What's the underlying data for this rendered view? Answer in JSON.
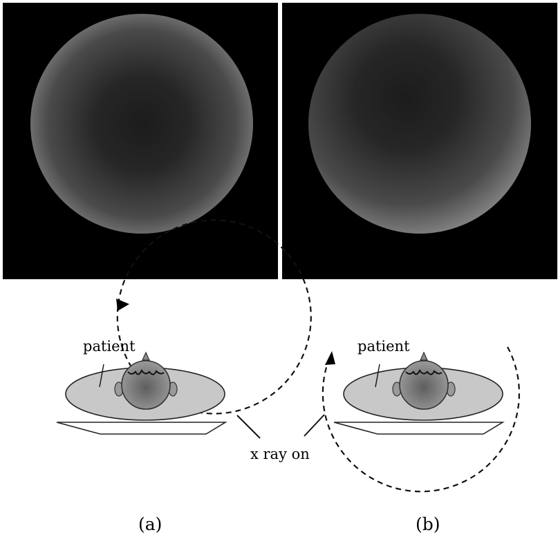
{
  "panel_a": {
    "caption": "(a)",
    "patient_label": "patient"
  },
  "panel_b": {
    "caption": "(b)",
    "patient_label": "patient"
  },
  "xray_label": "x ray on",
  "colors": {
    "background": "#000000",
    "patient_body": "#c8c8c8",
    "head": "#8a8a8a",
    "outline": "#2a2a2a"
  }
}
